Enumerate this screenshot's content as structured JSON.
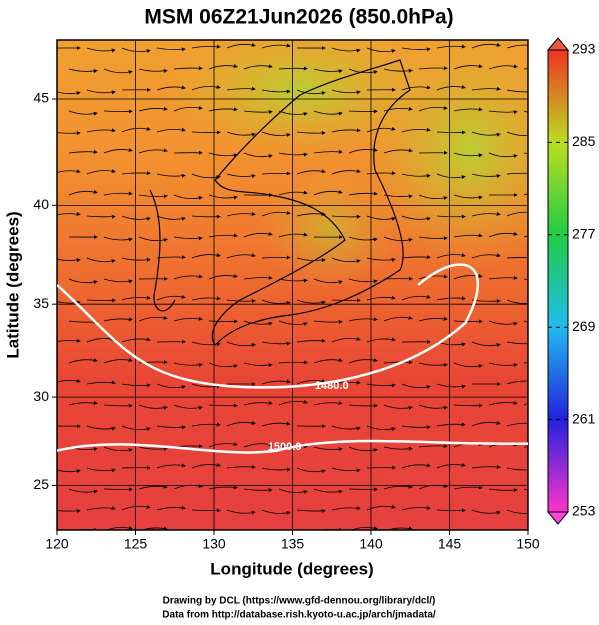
{
  "chart_data": {
    "type": "map",
    "title": "MSM 06Z21Jun2026 (850.0hPa)",
    "xlabel": "Longitude (degrees)",
    "ylabel": "Latitude  (degrees)",
    "xlim": [
      120,
      150
    ],
    "ylim": [
      22.4,
      47.6
    ],
    "xticks": [
      120,
      125,
      130,
      135,
      140,
      145,
      150
    ],
    "yticks": [
      25,
      30,
      35,
      40,
      45
    ],
    "grid": true,
    "colorbar": {
      "lim": [
        253,
        293
      ],
      "ticks": [
        253,
        261,
        269,
        277,
        285,
        293
      ],
      "colors": [
        "#ff33cc",
        "#2222dd",
        "#22bbee",
        "#22cc44",
        "#bbdd22",
        "#ee3322"
      ]
    },
    "contours": [
      {
        "value": 1480,
        "label": "1480.0"
      },
      {
        "value": 1500,
        "label": "1500.0"
      }
    ],
    "footer": [
      "Drawing by DCL (https://www.gfd-dennou.org/library/dcl/)",
      "Data from http://database.rish.kyoto-u.ac.jp/arch/jmadata/"
    ]
  }
}
